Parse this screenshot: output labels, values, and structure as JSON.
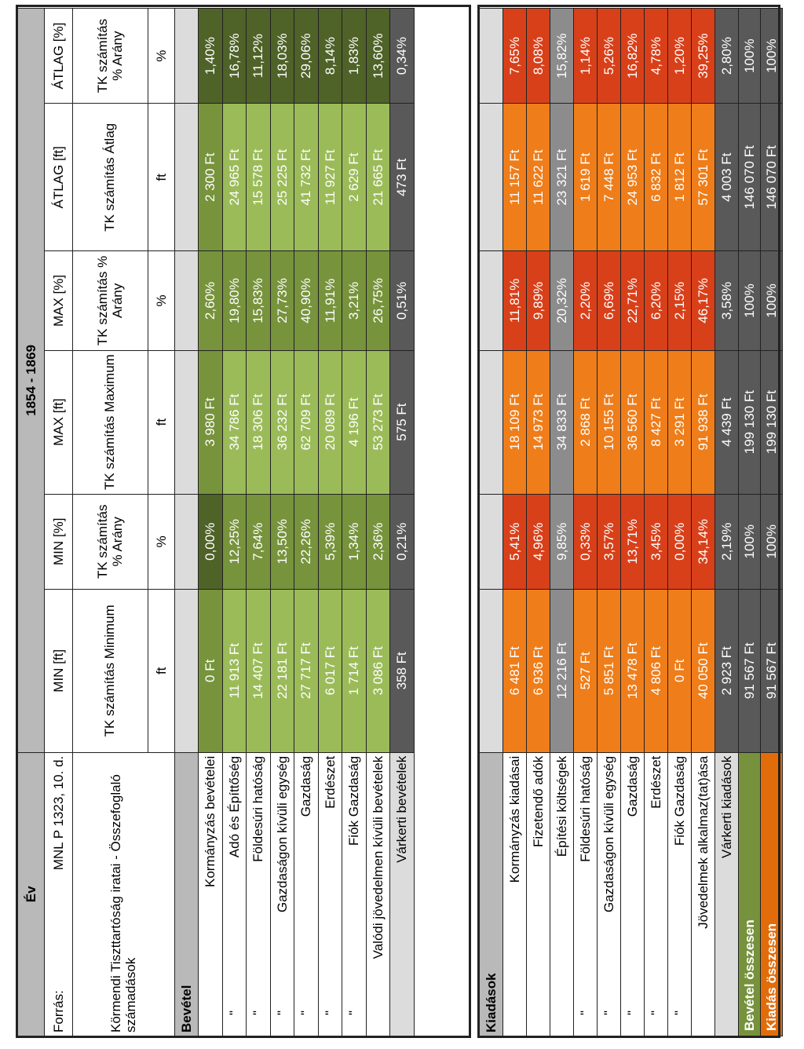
{
  "header": {
    "ev_label": "Év",
    "period": "1854 - 1869",
    "forras_label": "Forrás:",
    "forras_value": "MNL P 1323, 10. d.",
    "description": "Körmendi Tiszttartóság iratai - Összefoglaló számadások",
    "columns": [
      {
        "title": "MIN [ft]",
        "desc": "TK számítás Minimum",
        "unit": "ft"
      },
      {
        "title": "MIN [%]",
        "desc": "TK számítás % Arány",
        "unit": "%"
      },
      {
        "title": "MAX [ft]",
        "desc": "TK számítás Maximum",
        "unit": "ft"
      },
      {
        "title": "MAX [%]",
        "desc": "TK számítás % Arány",
        "unit": "%"
      },
      {
        "title": "ÁTLAG [ft]",
        "desc": "TK számítás Átlag",
        "unit": "ft"
      },
      {
        "title": "ÁTLAG [%]",
        "desc": "TK számítás % Arány",
        "unit": "%"
      }
    ]
  },
  "revenue": {
    "title": "Bevétel",
    "rows": [
      {
        "label": "Kormányzás bevételei",
        "ditto": "",
        "values": [
          "0 Ft",
          "0,00%",
          "3 980 Ft",
          "2,60%",
          "2 300 Ft",
          "1,40%"
        ]
      },
      {
        "label": "Adó és Építtőség",
        "ditto": "\"",
        "values": [
          "11 913 Ft",
          "12,25%",
          "34 786 Ft",
          "19,80%",
          "24 965 Ft",
          "16,78%"
        ]
      },
      {
        "label": "Földesúri hatóság",
        "ditto": "\"",
        "values": [
          "14 407 Ft",
          "7,64%",
          "18 306 Ft",
          "15,83%",
          "15 578 Ft",
          "11,12%"
        ]
      },
      {
        "label": "Gazdaságon kívüli egység",
        "ditto": "\"",
        "values": [
          "22 181 Ft",
          "13,50%",
          "36 232 Ft",
          "27,73%",
          "25 225 Ft",
          "18,03%"
        ]
      },
      {
        "label": "Gazdaság",
        "ditto": "\"",
        "values": [
          "27 717 Ft",
          "22,26%",
          "62 709 Ft",
          "40,90%",
          "41 732 Ft",
          "29,06%"
        ]
      },
      {
        "label": "Erdészet",
        "ditto": "\"",
        "values": [
          "6 017 Ft",
          "5,39%",
          "20 089 Ft",
          "11,91%",
          "11 927 Ft",
          "8,14%"
        ]
      },
      {
        "label": "Fiók Gazdaság",
        "ditto": "\"",
        "values": [
          "1 714 Ft",
          "1,34%",
          "4 196 Ft",
          "3,21%",
          "2 629 Ft",
          "1,83%"
        ]
      },
      {
        "label": "Valódi jövedelmen kívüli bevételek",
        "ditto": "",
        "values": [
          "3 086 Ft",
          "2,36%",
          "53 273 Ft",
          "26,75%",
          "21 665 Ft",
          "13,60%"
        ]
      },
      {
        "label": "Várkerti bevételek",
        "ditto": "",
        "values": [
          "358 Ft",
          "0,21%",
          "575 Ft",
          "0,51%",
          "473 Ft",
          "0,34%"
        ]
      }
    ]
  },
  "expenses": {
    "title": "Kiadások",
    "rows": [
      {
        "label": "Kormányzás kiadásai",
        "ditto": "",
        "values": [
          "6 481 Ft",
          "5,41%",
          "18 109 Ft",
          "11,81%",
          "11 157 Ft",
          "7,65%"
        ]
      },
      {
        "label": "Fizetendő adók",
        "ditto": "",
        "values": [
          "6 936 Ft",
          "4,96%",
          "14 973 Ft",
          "9,89%",
          "11 622 Ft",
          "8,08%"
        ]
      },
      {
        "label": "Építési költségek",
        "ditto": "",
        "values": [
          "12 216 Ft",
          "9,85%",
          "34 833 Ft",
          "20,32%",
          "23 321 Ft",
          "15,82%"
        ]
      },
      {
        "label": "Földesúri hatóság",
        "ditto": "\"",
        "values": [
          "527 Ft",
          "0,33%",
          "2 868 Ft",
          "2,20%",
          "1 619 Ft",
          "1,14%"
        ]
      },
      {
        "label": "Gazdaságon kívüli egység",
        "ditto": "\"",
        "values": [
          "5 851 Ft",
          "3,57%",
          "10 155 Ft",
          "6,69%",
          "7 448 Ft",
          "5,26%"
        ]
      },
      {
        "label": "Gazdaság",
        "ditto": "\"",
        "values": [
          "13 478 Ft",
          "13,71%",
          "36 560 Ft",
          "22,71%",
          "24 953 Ft",
          "16,82%"
        ]
      },
      {
        "label": "Erdészet",
        "ditto": "\"",
        "values": [
          "4 806 Ft",
          "3,45%",
          "8 427 Ft",
          "6,20%",
          "6 832 Ft",
          "4,78%"
        ]
      },
      {
        "label": "Fiók Gazdaság",
        "ditto": "\"",
        "values": [
          "0 Ft",
          "0,00%",
          "3 291 Ft",
          "2,15%",
          "1 812 Ft",
          "1,20%"
        ]
      },
      {
        "label": "Jövedelmek alkalmaz(tat)ása",
        "ditto": "",
        "values": [
          "40 050 Ft",
          "34,14%",
          "91 938 Ft",
          "46,17%",
          "57 301 Ft",
          "39,25%"
        ]
      },
      {
        "label": "Várkerti kiadások",
        "ditto": "",
        "values": [
          "2 923 Ft",
          "2,19%",
          "4 439 Ft",
          "3,58%",
          "4 003 Ft",
          "2,80%"
        ]
      }
    ]
  },
  "totals": [
    {
      "label": "Bevétel összesen",
      "values": [
        "91 567 Ft",
        "100%",
        "199 130 Ft",
        "100%",
        "146 070 Ft",
        "100%"
      ]
    },
    {
      "label": "Kiadás összesen",
      "values": [
        "91 567 Ft",
        "100%",
        "199 130 Ft",
        "100%",
        "146 070 Ft",
        "100%"
      ]
    }
  ],
  "colors": {
    "revenue_dark": "#4f6228",
    "revenue_mid": "#77933c",
    "revenue_light": "#9bbb59",
    "expense_red": "#d8401a",
    "expense_orange": "#ee7d1a",
    "expense_grey": "#8c8c8c",
    "total_green": "#76923c",
    "total_orange": "#e36c0a"
  }
}
